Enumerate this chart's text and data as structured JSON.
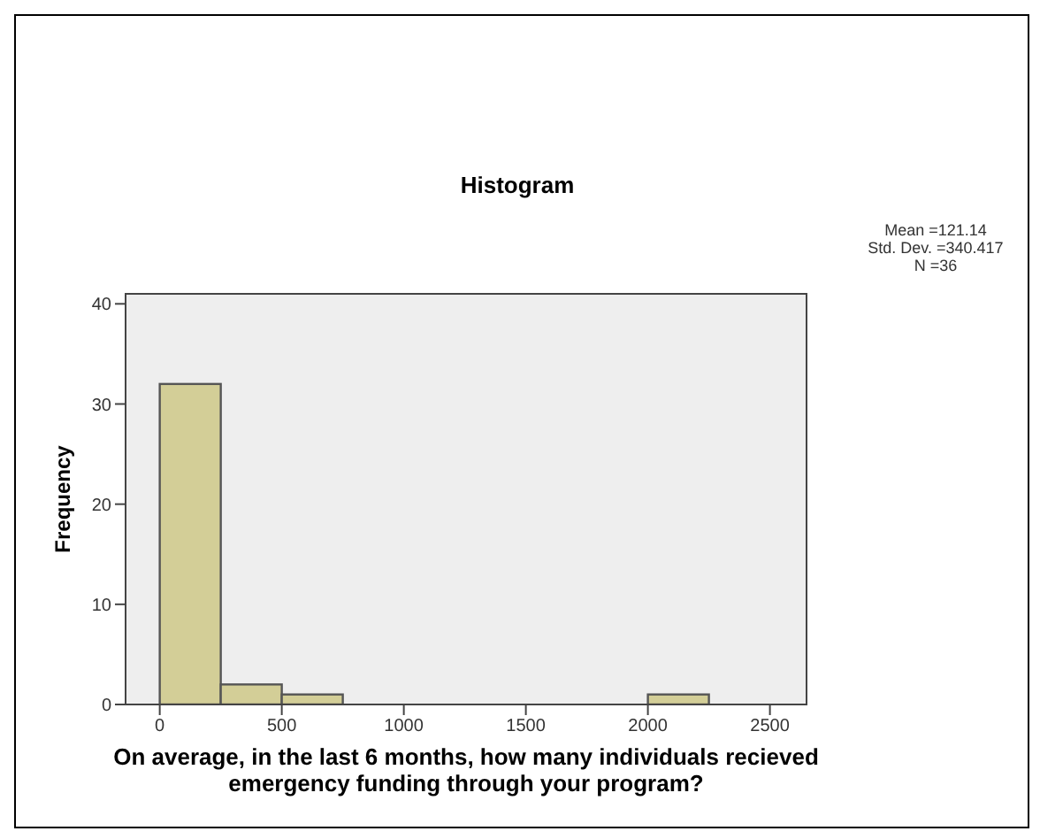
{
  "chart_data": {
    "type": "histogram",
    "title": "Histogram",
    "xlabel": "On average, in the last 6 months, how many individuals recieved emergency funding through your program?",
    "ylabel": "Frequency",
    "bins": [
      0,
      250,
      500,
      750,
      1000,
      1250,
      1500,
      1750,
      2000,
      2250
    ],
    "values": [
      32,
      2,
      1,
      0,
      0,
      0,
      0,
      0,
      1
    ],
    "color": "#d3ce97",
    "xlim": [
      -140,
      2650
    ],
    "xticks": [
      0,
      500,
      1000,
      1500,
      2000,
      2500
    ],
    "ylim": [
      0,
      41
    ],
    "yticks": [
      0,
      10,
      20,
      30,
      40
    ],
    "grid": false,
    "annotations": [
      "Mean =121.14",
      "Std. Dev. =340.417",
      "N =36"
    ]
  }
}
